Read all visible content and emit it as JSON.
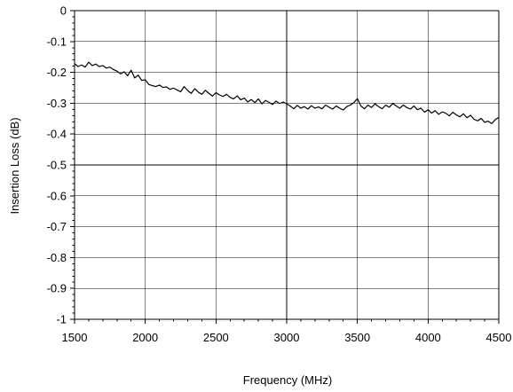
{
  "chart_data": {
    "type": "line",
    "xlabel": "Frequency (MHz)",
    "ylabel": "Insertion Loss (dB)",
    "xlim": [
      1500,
      4500
    ],
    "ylim": [
      -1,
      0
    ],
    "x_ticks": [
      1500,
      2000,
      2500,
      3000,
      3500,
      4000,
      4500
    ],
    "y_ticks": [
      0,
      -0.1,
      -0.2,
      -0.3,
      -0.4,
      -0.5,
      -0.6,
      -0.7,
      -0.8,
      -0.9,
      -1
    ],
    "x_tick_labels": [
      "1500",
      "2000",
      "2500",
      "3000",
      "3500",
      "4000",
      "4500"
    ],
    "y_tick_labels": [
      "0",
      "-0.1",
      "-0.2",
      "-0.3",
      "-0.4",
      "-0.5",
      "-0.6",
      "-0.7",
      "-0.8",
      "-0.9",
      "-1"
    ],
    "grid": true,
    "series": [
      {
        "color": "#000000",
        "x": [
          1500,
          1525,
          1550,
          1575,
          1600,
          1625,
          1650,
          1675,
          1700,
          1725,
          1750,
          1775,
          1800,
          1825,
          1850,
          1875,
          1900,
          1925,
          1950,
          1975,
          2000,
          2025,
          2050,
          2075,
          2100,
          2125,
          2150,
          2175,
          2200,
          2225,
          2250,
          2275,
          2300,
          2325,
          2350,
          2375,
          2400,
          2425,
          2450,
          2475,
          2500,
          2525,
          2550,
          2575,
          2600,
          2625,
          2650,
          2675,
          2700,
          2725,
          2750,
          2775,
          2800,
          2825,
          2850,
          2875,
          2900,
          2925,
          2950,
          2975,
          3000,
          3025,
          3050,
          3075,
          3100,
          3125,
          3150,
          3175,
          3200,
          3225,
          3250,
          3275,
          3300,
          3325,
          3350,
          3375,
          3400,
          3425,
          3450,
          3475,
          3500,
          3525,
          3550,
          3575,
          3600,
          3625,
          3650,
          3675,
          3700,
          3725,
          3750,
          3775,
          3800,
          3825,
          3850,
          3875,
          3900,
          3925,
          3950,
          3975,
          4000,
          4025,
          4050,
          4075,
          4100,
          4125,
          4150,
          4175,
          4200,
          4225,
          4250,
          4275,
          4300,
          4325,
          4350,
          4375,
          4400,
          4425,
          4450,
          4475,
          4500
        ],
        "y": [
          -0.172,
          -0.181,
          -0.176,
          -0.183,
          -0.167,
          -0.178,
          -0.173,
          -0.181,
          -0.178,
          -0.186,
          -0.183,
          -0.191,
          -0.196,
          -0.205,
          -0.198,
          -0.211,
          -0.193,
          -0.218,
          -0.209,
          -0.226,
          -0.224,
          -0.239,
          -0.243,
          -0.246,
          -0.241,
          -0.249,
          -0.247,
          -0.255,
          -0.251,
          -0.257,
          -0.263,
          -0.246,
          -0.259,
          -0.268,
          -0.253,
          -0.264,
          -0.271,
          -0.258,
          -0.268,
          -0.277,
          -0.266,
          -0.273,
          -0.278,
          -0.271,
          -0.281,
          -0.286,
          -0.276,
          -0.289,
          -0.283,
          -0.296,
          -0.288,
          -0.298,
          -0.286,
          -0.302,
          -0.291,
          -0.297,
          -0.304,
          -0.293,
          -0.301,
          -0.296,
          -0.302,
          -0.309,
          -0.318,
          -0.307,
          -0.316,
          -0.311,
          -0.319,
          -0.308,
          -0.316,
          -0.312,
          -0.318,
          -0.306,
          -0.313,
          -0.319,
          -0.309,
          -0.316,
          -0.322,
          -0.311,
          -0.306,
          -0.298,
          -0.285,
          -0.309,
          -0.318,
          -0.306,
          -0.314,
          -0.302,
          -0.311,
          -0.318,
          -0.306,
          -0.313,
          -0.301,
          -0.309,
          -0.316,
          -0.306,
          -0.314,
          -0.319,
          -0.309,
          -0.321,
          -0.316,
          -0.329,
          -0.321,
          -0.332,
          -0.324,
          -0.336,
          -0.328,
          -0.332,
          -0.341,
          -0.329,
          -0.338,
          -0.344,
          -0.334,
          -0.347,
          -0.339,
          -0.352,
          -0.357,
          -0.349,
          -0.362,
          -0.358,
          -0.366,
          -0.353,
          -0.346
        ]
      }
    ]
  }
}
